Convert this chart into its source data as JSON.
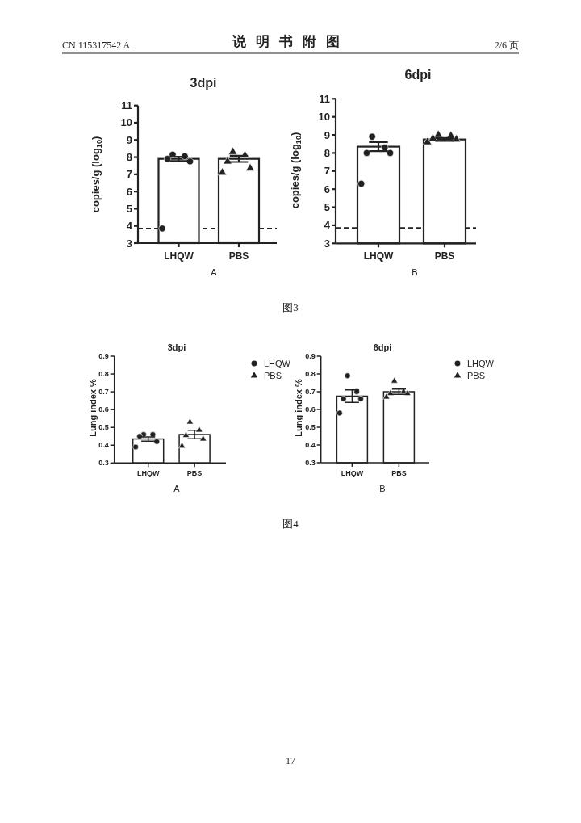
{
  "chart_data": [
    {
      "type": "bar",
      "title": "3dpi",
      "ylabel": "copies/g (log$_{10}$)",
      "categories": [
        "LHQW",
        "PBS"
      ],
      "series": [
        {
          "type": "bar",
          "color": "#ffffff",
          "values": [
            7.9,
            7.9
          ],
          "errors": [
            0.12,
            0.18
          ]
        },
        {
          "type": "scatter",
          "color": "#222222",
          "marker": "circle",
          "x": [
            "LHQW",
            "LHQW",
            "LHQW",
            "LHQW",
            "LHQW"
          ],
          "values": [
            8.15,
            8.05,
            7.9,
            7.75,
            3.85
          ]
        },
        {
          "type": "scatter",
          "color": "#222222",
          "marker": "triangle",
          "x": [
            "PBS",
            "PBS",
            "PBS",
            "PBS",
            "PBS"
          ],
          "values": [
            8.3,
            8.1,
            7.75,
            7.35,
            7.1
          ]
        }
      ],
      "ylim": [
        3,
        11
      ],
      "yticks": [
        3,
        4,
        5,
        6,
        7,
        8,
        9,
        10,
        11
      ],
      "ref_lines": [
        {
          "axis": "y",
          "value": 3.85,
          "line_style": "dashed",
          "color": "#222222"
        }
      ],
      "annotations": [
        "CN 115317542 A",
        "说明书附图",
        "2/6 页",
        "A"
      ]
    },
    {
      "type": "bar",
      "title": "6dpi",
      "ylabel": "copies/g (log$_{10}$)",
      "categories": [
        "LHQW",
        "PBS"
      ],
      "series": [
        {
          "type": "bar",
          "color": "#ffffff",
          "values": [
            8.35,
            8.75
          ],
          "errors": [
            0.25,
            0.08
          ]
        },
        {
          "type": "scatter",
          "color": "#222222",
          "marker": "circle",
          "x": [
            "LHQW",
            "LHQW",
            "LHQW",
            "LHQW",
            "LHQW"
          ],
          "values": [
            8.9,
            8.3,
            8.0,
            8.0,
            6.3
          ]
        },
        {
          "type": "scatter",
          "color": "#222222",
          "marker": "triangle",
          "x": [
            "PBS",
            "PBS",
            "PBS",
            "PBS",
            "PBS"
          ],
          "values": [
            9.0,
            8.95,
            8.8,
            8.75,
            8.6
          ]
        }
      ],
      "ylim": [
        3,
        11
      ],
      "yticks": [
        3,
        4,
        5,
        6,
        7,
        8,
        9,
        10,
        11
      ],
      "ref_lines": [
        {
          "axis": "y",
          "value": 3.85,
          "line_style": "dashed",
          "color": "#222222"
        }
      ],
      "annotations": [
        "B",
        "图3"
      ]
    },
    {
      "type": "bar",
      "title": "3dpi",
      "ylabel": "Lung index %",
      "categories": [
        "LHQW",
        "PBS"
      ],
      "series": [
        {
          "type": "bar",
          "color": "#ffffff",
          "values": [
            0.435,
            0.46
          ],
          "errors": [
            0.012,
            0.024
          ]
        },
        {
          "type": "scatter",
          "name": "LHQW",
          "color": "#222222",
          "marker": "circle",
          "x": [
            "LHQW",
            "LHQW",
            "LHQW",
            "LHQW",
            "LHQW"
          ],
          "values": [
            0.46,
            0.46,
            0.45,
            0.42,
            0.39
          ]
        },
        {
          "type": "scatter",
          "name": "PBS",
          "color": "#222222",
          "marker": "triangle",
          "x": [
            "PBS",
            "PBS",
            "PBS",
            "PBS",
            "PBS"
          ],
          "values": [
            0.53,
            0.485,
            0.455,
            0.435,
            0.395
          ]
        }
      ],
      "ylim": [
        0.3,
        0.9
      ],
      "yticks": [
        0.3,
        0.4,
        0.5,
        0.6,
        0.7,
        0.8,
        0.9
      ],
      "legend": "right",
      "annotations": [
        "A"
      ]
    },
    {
      "type": "bar",
      "title": "6dpi",
      "ylabel": "Lung index %",
      "categories": [
        "LHQW",
        "PBS"
      ],
      "series": [
        {
          "type": "bar",
          "color": "#ffffff",
          "values": [
            0.675,
            0.7
          ],
          "errors": [
            0.035,
            0.015
          ]
        },
        {
          "type": "scatter",
          "name": "LHQW",
          "color": "#222222",
          "marker": "circle",
          "x": [
            "LHQW",
            "LHQW",
            "LHQW",
            "LHQW",
            "LHQW"
          ],
          "values": [
            0.79,
            0.7,
            0.66,
            0.66,
            0.58
          ]
        },
        {
          "type": "scatter",
          "name": "PBS",
          "color": "#222222",
          "marker": "triangle",
          "x": [
            "PBS",
            "PBS",
            "PBS",
            "PBS",
            "PBS"
          ],
          "values": [
            0.76,
            0.7,
            0.69,
            0.69,
            0.67
          ]
        }
      ],
      "ylim": [
        0.3,
        0.9
      ],
      "yticks": [
        0.3,
        0.4,
        0.5,
        0.6,
        0.7,
        0.8,
        0.9
      ],
      "legend": "right",
      "annotations": [
        "B",
        "图4",
        "17"
      ]
    }
  ]
}
